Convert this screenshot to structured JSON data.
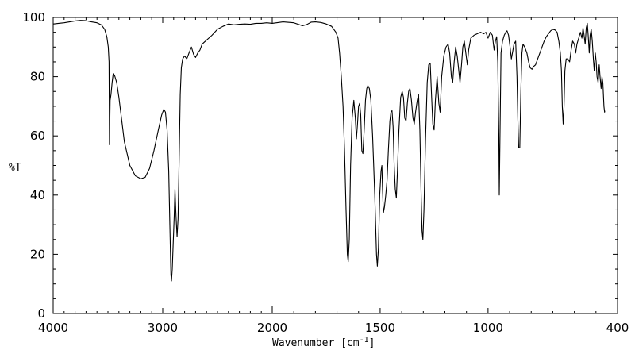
{
  "chart_data": {
    "type": "line",
    "xlabel": "Wavenumber [cm",
    "xlabel_sup": "-1",
    "xlabel_close": "]",
    "ylabel": "%T",
    "xlim": [
      4000,
      400
    ],
    "ylim": [
      0,
      100
    ],
    "x_ticks": [
      4000,
      3000,
      2000,
      1500,
      1000,
      400
    ],
    "x_tick_labels": [
      "4000",
      "3000",
      "2000",
      "1500",
      "1000",
      "400"
    ],
    "y_ticks": [
      0,
      20,
      40,
      60,
      80,
      100
    ],
    "y_tick_labels": [
      "0",
      "20",
      "40",
      "60",
      "80",
      "100"
    ],
    "grid": false,
    "series": [
      {
        "color": "#000000",
        "points": [
          [
            3997,
            97.8
          ],
          [
            3950,
            98.0
          ],
          [
            3900,
            98.2
          ],
          [
            3850,
            98.5
          ],
          [
            3800,
            98.8
          ],
          [
            3750,
            99.0
          ],
          [
            3700,
            98.9
          ],
          [
            3650,
            98.5
          ],
          [
            3600,
            98.2
          ],
          [
            3560,
            97.5
          ],
          [
            3530,
            96.0
          ],
          [
            3510,
            93.5
          ],
          [
            3497,
            90.0
          ],
          [
            3490,
            85.0
          ],
          [
            3488,
            70.0
          ],
          [
            3486,
            57.0
          ],
          [
            3484,
            62.0
          ],
          [
            3480,
            72.0
          ],
          [
            3472,
            74.0
          ],
          [
            3462,
            78.0
          ],
          [
            3452,
            81.0
          ],
          [
            3440,
            80.5
          ],
          [
            3420,
            78.0
          ],
          [
            3400,
            73.0
          ],
          [
            3380,
            67.0
          ],
          [
            3350,
            58.0
          ],
          [
            3300,
            50.0
          ],
          [
            3250,
            46.5
          ],
          [
            3200,
            45.5
          ],
          [
            3160,
            46.0
          ],
          [
            3120,
            49.0
          ],
          [
            3080,
            55.0
          ],
          [
            3040,
            62.0
          ],
          [
            3010,
            67.0
          ],
          [
            2990,
            69.0
          ],
          [
            2975,
            68.0
          ],
          [
            2960,
            62.0
          ],
          [
            2945,
            48.0
          ],
          [
            2935,
            30.0
          ],
          [
            2925,
            13.0
          ],
          [
            2920,
            11.0
          ],
          [
            2913,
            15.0
          ],
          [
            2903,
            25.0
          ],
          [
            2895,
            33.0
          ],
          [
            2888,
            42.0
          ],
          [
            2882,
            36.0
          ],
          [
            2876,
            31.0
          ],
          [
            2869,
            26.0
          ],
          [
            2860,
            32.0
          ],
          [
            2850,
            52.0
          ],
          [
            2840,
            74.0
          ],
          [
            2830,
            83.0
          ],
          [
            2818,
            86.0
          ],
          [
            2800,
            87.0
          ],
          [
            2780,
            86.0
          ],
          [
            2760,
            88.0
          ],
          [
            2738,
            90.0
          ],
          [
            2718,
            87.5
          ],
          [
            2700,
            86.5
          ],
          [
            2680,
            88.0
          ],
          [
            2660,
            89.0
          ],
          [
            2640,
            91.0
          ],
          [
            2610,
            92.0
          ],
          [
            2580,
            93.0
          ],
          [
            2550,
            94.0
          ],
          [
            2500,
            96.0
          ],
          [
            2450,
            97.0
          ],
          [
            2400,
            97.8
          ],
          [
            2350,
            97.5
          ],
          [
            2300,
            97.7
          ],
          [
            2250,
            97.8
          ],
          [
            2200,
            97.7
          ],
          [
            2150,
            98.0
          ],
          [
            2100,
            98.0
          ],
          [
            2050,
            98.2
          ],
          [
            2000,
            98.0
          ],
          [
            1950,
            98.5
          ],
          [
            1900,
            98.2
          ],
          [
            1860,
            97.2
          ],
          [
            1840,
            97.6
          ],
          [
            1820,
            98.4
          ],
          [
            1800,
            98.5
          ],
          [
            1775,
            98.3
          ],
          [
            1750,
            97.8
          ],
          [
            1725,
            97.0
          ],
          [
            1715,
            96.0
          ],
          [
            1705,
            95.0
          ],
          [
            1695,
            93.0
          ],
          [
            1688,
            88.0
          ],
          [
            1680,
            80.0
          ],
          [
            1672,
            70.0
          ],
          [
            1665,
            55.0
          ],
          [
            1658,
            35.0
          ],
          [
            1652,
            20.0
          ],
          [
            1648,
            17.5
          ],
          [
            1643,
            25.0
          ],
          [
            1637,
            50.0
          ],
          [
            1630,
            66.0
          ],
          [
            1622,
            72.0
          ],
          [
            1615,
            66.0
          ],
          [
            1610,
            59.0
          ],
          [
            1605,
            64.0
          ],
          [
            1600,
            70.0
          ],
          [
            1595,
            71.0
          ],
          [
            1590,
            67.0
          ],
          [
            1585,
            55.0
          ],
          [
            1580,
            54.0
          ],
          [
            1574,
            62.0
          ],
          [
            1568,
            72.0
          ],
          [
            1562,
            76.0
          ],
          [
            1557,
            77.0
          ],
          [
            1550,
            76.0
          ],
          [
            1543,
            72.0
          ],
          [
            1535,
            60.0
          ],
          [
            1525,
            40.0
          ],
          [
            1517,
            20.0
          ],
          [
            1513,
            16.0
          ],
          [
            1508,
            22.0
          ],
          [
            1502,
            40.0
          ],
          [
            1496,
            48.0
          ],
          [
            1492,
            50.0
          ],
          [
            1489,
            42.0
          ],
          [
            1485,
            34.0
          ],
          [
            1480,
            36.0
          ],
          [
            1474,
            40.0
          ],
          [
            1468,
            45.0
          ],
          [
            1462,
            55.0
          ],
          [
            1455,
            65.0
          ],
          [
            1450,
            68.0
          ],
          [
            1445,
            68.5
          ],
          [
            1440,
            63.0
          ],
          [
            1435,
            50.0
          ],
          [
            1430,
            42.0
          ],
          [
            1425,
            39.0
          ],
          [
            1420,
            48.0
          ],
          [
            1413,
            62.0
          ],
          [
            1405,
            73.0
          ],
          [
            1398,
            75.0
          ],
          [
            1392,
            73.0
          ],
          [
            1386,
            66.0
          ],
          [
            1380,
            65.0
          ],
          [
            1374,
            71.0
          ],
          [
            1368,
            75.0
          ],
          [
            1362,
            76.0
          ],
          [
            1355,
            72.0
          ],
          [
            1348,
            66.0
          ],
          [
            1342,
            64.0
          ],
          [
            1336,
            68.0
          ],
          [
            1328,
            72.0
          ],
          [
            1322,
            74.0
          ],
          [
            1316,
            62.0
          ],
          [
            1310,
            40.0
          ],
          [
            1306,
            28.0
          ],
          [
            1302,
            25.0
          ],
          [
            1297,
            35.0
          ],
          [
            1290,
            58.0
          ],
          [
            1282,
            78.0
          ],
          [
            1275,
            84.0
          ],
          [
            1268,
            84.5
          ],
          [
            1262,
            74.0
          ],
          [
            1256,
            64.0
          ],
          [
            1250,
            62.0
          ],
          [
            1244,
            72.0
          ],
          [
            1236,
            80.0
          ],
          [
            1228,
            71.0
          ],
          [
            1222,
            68.0
          ],
          [
            1215,
            80.0
          ],
          [
            1205,
            87.0
          ],
          [
            1195,
            90.0
          ],
          [
            1185,
            91.0
          ],
          [
            1178,
            88.0
          ],
          [
            1170,
            80.0
          ],
          [
            1164,
            78.0
          ],
          [
            1157,
            85.0
          ],
          [
            1150,
            90.0
          ],
          [
            1143,
            87.0
          ],
          [
            1137,
            83.0
          ],
          [
            1130,
            78.0
          ],
          [
            1123,
            84.0
          ],
          [
            1117,
            90.0
          ],
          [
            1110,
            92.0
          ],
          [
            1103,
            88.0
          ],
          [
            1096,
            84.0
          ],
          [
            1090,
            89.0
          ],
          [
            1080,
            93.0
          ],
          [
            1065,
            94.0
          ],
          [
            1050,
            94.5
          ],
          [
            1035,
            95.0
          ],
          [
            1020,
            94.5
          ],
          [
            1010,
            95.0
          ],
          [
            1000,
            93.0
          ],
          [
            990,
            95.0
          ],
          [
            980,
            94.0
          ],
          [
            972,
            89.0
          ],
          [
            966,
            92.0
          ],
          [
            960,
            93.5
          ],
          [
            955,
            85.0
          ],
          [
            950,
            60.0
          ],
          [
            948,
            40.0
          ],
          [
            945,
            58.0
          ],
          [
            940,
            88.0
          ],
          [
            933,
            92.0
          ],
          [
            925,
            94.0
          ],
          [
            918,
            95.0
          ],
          [
            912,
            95.5
          ],
          [
            905,
            94.0
          ],
          [
            898,
            90.0
          ],
          [
            892,
            86.0
          ],
          [
            887,
            88.0
          ],
          [
            880,
            91.0
          ],
          [
            872,
            92.0
          ],
          [
            866,
            80.0
          ],
          [
            862,
            66.0
          ],
          [
            858,
            56.0
          ],
          [
            853,
            56.0
          ],
          [
            848,
            75.0
          ],
          [
            843,
            88.0
          ],
          [
            838,
            91.0
          ],
          [
            830,
            90.0
          ],
          [
            820,
            88.0
          ],
          [
            812,
            85.0
          ],
          [
            805,
            83.0
          ],
          [
            796,
            82.5
          ],
          [
            788,
            83.5
          ],
          [
            780,
            84.0
          ],
          [
            770,
            86.0
          ],
          [
            760,
            88.0
          ],
          [
            750,
            90.0
          ],
          [
            740,
            92.0
          ],
          [
            730,
            93.5
          ],
          [
            720,
            94.5
          ],
          [
            710,
            95.5
          ],
          [
            700,
            96.0
          ],
          [
            690,
            95.8
          ],
          [
            680,
            95.0
          ],
          [
            672,
            92.0
          ],
          [
            665,
            88.0
          ],
          [
            660,
            82.0
          ],
          [
            656,
            70.0
          ],
          [
            652,
            64.0
          ],
          [
            648,
            70.0
          ],
          [
            644,
            82.0
          ],
          [
            638,
            86.0
          ],
          [
            630,
            86.0
          ],
          [
            622,
            85.0
          ],
          [
            615,
            89.0
          ],
          [
            608,
            92.0
          ],
          [
            600,
            91.0
          ],
          [
            594,
            88.0
          ],
          [
            588,
            91.0
          ],
          [
            580,
            93.0
          ],
          [
            572,
            95.0
          ],
          [
            565,
            93.0
          ],
          [
            560,
            96.5
          ],
          [
            555,
            94.0
          ],
          [
            550,
            91.0
          ],
          [
            545,
            96.5
          ],
          [
            540,
            98.0
          ],
          [
            536,
            94.0
          ],
          [
            531,
            88.0
          ],
          [
            527,
            94.0
          ],
          [
            522,
            96.0
          ],
          [
            517,
            92.0
          ],
          [
            512,
            86.0
          ],
          [
            508,
            82.0
          ],
          [
            503,
            88.0
          ],
          [
            499,
            85.0
          ],
          [
            495,
            80.0
          ],
          [
            490,
            78.0
          ],
          [
            485,
            84.0
          ],
          [
            481,
            80.0
          ],
          [
            476,
            76.0
          ],
          [
            472,
            80.0
          ],
          [
            468,
            78.0
          ],
          [
            463,
            70.0
          ],
          [
            460,
            68.0
          ],
          [
            459,
            68.5
          ]
        ]
      }
    ]
  }
}
